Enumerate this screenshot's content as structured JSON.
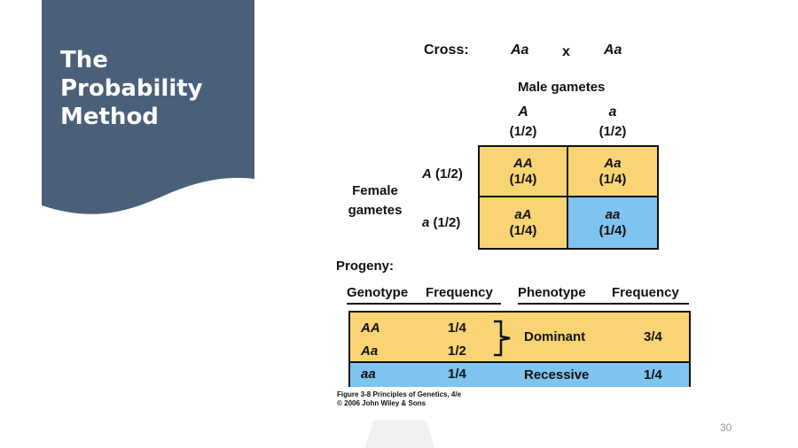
{
  "slide": {
    "title_lines": [
      "The",
      "Probability",
      "Method"
    ],
    "page_number": "30",
    "colors": {
      "banner": "#4a6079",
      "dominant": "#f8d474",
      "recessive": "#7fc3ef"
    }
  },
  "cross": {
    "label": "Cross:",
    "parent1": "Aa",
    "symbol": "x",
    "parent2": "Aa"
  },
  "male_gametes": {
    "label": "Male gametes",
    "columns": [
      {
        "allele": "A",
        "prob": "(1/2)"
      },
      {
        "allele": "a",
        "prob": "(1/2)"
      }
    ]
  },
  "female_gametes": {
    "label_line1": "Female",
    "label_line2": "gametes",
    "rows": [
      {
        "allele": "A",
        "prob": "(1/2)"
      },
      {
        "allele": "a",
        "prob": "(1/2)"
      }
    ]
  },
  "punnett": [
    [
      {
        "genotype": "AA",
        "freq": "(1/4)"
      },
      {
        "genotype": "Aa",
        "freq": "(1/4)"
      }
    ],
    [
      {
        "genotype": "aA",
        "freq": "(1/4)"
      },
      {
        "genotype": "aa",
        "freq": "(1/4)"
      }
    ]
  ],
  "progeny": {
    "label": "Progeny:",
    "headers": {
      "genotype": "Genotype",
      "frequency": "Frequency",
      "phenotype": "Phenotype",
      "frequency2": "Frequency"
    },
    "genotype_rows": [
      {
        "genotype": "AA",
        "freq": "1/4"
      },
      {
        "genotype": "Aa",
        "freq": "1/2"
      },
      {
        "genotype": "aa",
        "freq": "1/4"
      }
    ],
    "phenotype_rows": [
      {
        "phenotype": "Dominant",
        "freq": "3/4"
      },
      {
        "phenotype": "Recessive",
        "freq": "1/4"
      }
    ]
  },
  "credit": {
    "line1": "Figure 3-8  Principles of Genetics, 4/e",
    "line2": "© 2006 John Wiley & Sons"
  }
}
